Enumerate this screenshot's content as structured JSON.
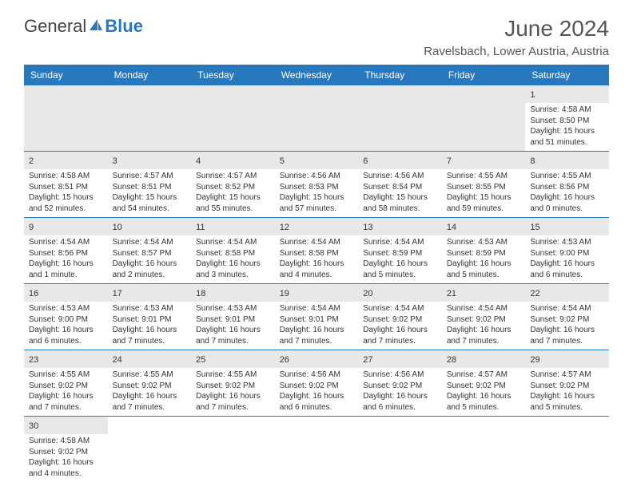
{
  "logo": {
    "text1": "General",
    "text2": "Blue"
  },
  "title": "June 2024",
  "location": "Ravelsbach, Lower Austria, Austria",
  "colors": {
    "header_bg": "#2878bd",
    "header_fg": "#ffffff",
    "daynum_bg": "#e8e8e8",
    "border": "#2878bd"
  },
  "weekdays": [
    "Sunday",
    "Monday",
    "Tuesday",
    "Wednesday",
    "Thursday",
    "Friday",
    "Saturday"
  ],
  "weeks": [
    [
      null,
      null,
      null,
      null,
      null,
      null,
      {
        "n": "1",
        "sr": "Sunrise: 4:58 AM",
        "ss": "Sunset: 8:50 PM",
        "dl": "Daylight: 15 hours and 51 minutes."
      }
    ],
    [
      {
        "n": "2",
        "sr": "Sunrise: 4:58 AM",
        "ss": "Sunset: 8:51 PM",
        "dl": "Daylight: 15 hours and 52 minutes."
      },
      {
        "n": "3",
        "sr": "Sunrise: 4:57 AM",
        "ss": "Sunset: 8:51 PM",
        "dl": "Daylight: 15 hours and 54 minutes."
      },
      {
        "n": "4",
        "sr": "Sunrise: 4:57 AM",
        "ss": "Sunset: 8:52 PM",
        "dl": "Daylight: 15 hours and 55 minutes."
      },
      {
        "n": "5",
        "sr": "Sunrise: 4:56 AM",
        "ss": "Sunset: 8:53 PM",
        "dl": "Daylight: 15 hours and 57 minutes."
      },
      {
        "n": "6",
        "sr": "Sunrise: 4:56 AM",
        "ss": "Sunset: 8:54 PM",
        "dl": "Daylight: 15 hours and 58 minutes."
      },
      {
        "n": "7",
        "sr": "Sunrise: 4:55 AM",
        "ss": "Sunset: 8:55 PM",
        "dl": "Daylight: 15 hours and 59 minutes."
      },
      {
        "n": "8",
        "sr": "Sunrise: 4:55 AM",
        "ss": "Sunset: 8:56 PM",
        "dl": "Daylight: 16 hours and 0 minutes."
      }
    ],
    [
      {
        "n": "9",
        "sr": "Sunrise: 4:54 AM",
        "ss": "Sunset: 8:56 PM",
        "dl": "Daylight: 16 hours and 1 minute."
      },
      {
        "n": "10",
        "sr": "Sunrise: 4:54 AM",
        "ss": "Sunset: 8:57 PM",
        "dl": "Daylight: 16 hours and 2 minutes."
      },
      {
        "n": "11",
        "sr": "Sunrise: 4:54 AM",
        "ss": "Sunset: 8:58 PM",
        "dl": "Daylight: 16 hours and 3 minutes."
      },
      {
        "n": "12",
        "sr": "Sunrise: 4:54 AM",
        "ss": "Sunset: 8:58 PM",
        "dl": "Daylight: 16 hours and 4 minutes."
      },
      {
        "n": "13",
        "sr": "Sunrise: 4:54 AM",
        "ss": "Sunset: 8:59 PM",
        "dl": "Daylight: 16 hours and 5 minutes."
      },
      {
        "n": "14",
        "sr": "Sunrise: 4:53 AM",
        "ss": "Sunset: 8:59 PM",
        "dl": "Daylight: 16 hours and 5 minutes."
      },
      {
        "n": "15",
        "sr": "Sunrise: 4:53 AM",
        "ss": "Sunset: 9:00 PM",
        "dl": "Daylight: 16 hours and 6 minutes."
      }
    ],
    [
      {
        "n": "16",
        "sr": "Sunrise: 4:53 AM",
        "ss": "Sunset: 9:00 PM",
        "dl": "Daylight: 16 hours and 6 minutes."
      },
      {
        "n": "17",
        "sr": "Sunrise: 4:53 AM",
        "ss": "Sunset: 9:01 PM",
        "dl": "Daylight: 16 hours and 7 minutes."
      },
      {
        "n": "18",
        "sr": "Sunrise: 4:53 AM",
        "ss": "Sunset: 9:01 PM",
        "dl": "Daylight: 16 hours and 7 minutes."
      },
      {
        "n": "19",
        "sr": "Sunrise: 4:54 AM",
        "ss": "Sunset: 9:01 PM",
        "dl": "Daylight: 16 hours and 7 minutes."
      },
      {
        "n": "20",
        "sr": "Sunrise: 4:54 AM",
        "ss": "Sunset: 9:02 PM",
        "dl": "Daylight: 16 hours and 7 minutes."
      },
      {
        "n": "21",
        "sr": "Sunrise: 4:54 AM",
        "ss": "Sunset: 9:02 PM",
        "dl": "Daylight: 16 hours and 7 minutes."
      },
      {
        "n": "22",
        "sr": "Sunrise: 4:54 AM",
        "ss": "Sunset: 9:02 PM",
        "dl": "Daylight: 16 hours and 7 minutes."
      }
    ],
    [
      {
        "n": "23",
        "sr": "Sunrise: 4:55 AM",
        "ss": "Sunset: 9:02 PM",
        "dl": "Daylight: 16 hours and 7 minutes."
      },
      {
        "n": "24",
        "sr": "Sunrise: 4:55 AM",
        "ss": "Sunset: 9:02 PM",
        "dl": "Daylight: 16 hours and 7 minutes."
      },
      {
        "n": "25",
        "sr": "Sunrise: 4:55 AM",
        "ss": "Sunset: 9:02 PM",
        "dl": "Daylight: 16 hours and 7 minutes."
      },
      {
        "n": "26",
        "sr": "Sunrise: 4:56 AM",
        "ss": "Sunset: 9:02 PM",
        "dl": "Daylight: 16 hours and 6 minutes."
      },
      {
        "n": "27",
        "sr": "Sunrise: 4:56 AM",
        "ss": "Sunset: 9:02 PM",
        "dl": "Daylight: 16 hours and 6 minutes."
      },
      {
        "n": "28",
        "sr": "Sunrise: 4:57 AM",
        "ss": "Sunset: 9:02 PM",
        "dl": "Daylight: 16 hours and 5 minutes."
      },
      {
        "n": "29",
        "sr": "Sunrise: 4:57 AM",
        "ss": "Sunset: 9:02 PM",
        "dl": "Daylight: 16 hours and 5 minutes."
      }
    ],
    [
      {
        "n": "30",
        "sr": "Sunrise: 4:58 AM",
        "ss": "Sunset: 9:02 PM",
        "dl": "Daylight: 16 hours and 4 minutes."
      },
      null,
      null,
      null,
      null,
      null,
      null
    ]
  ]
}
